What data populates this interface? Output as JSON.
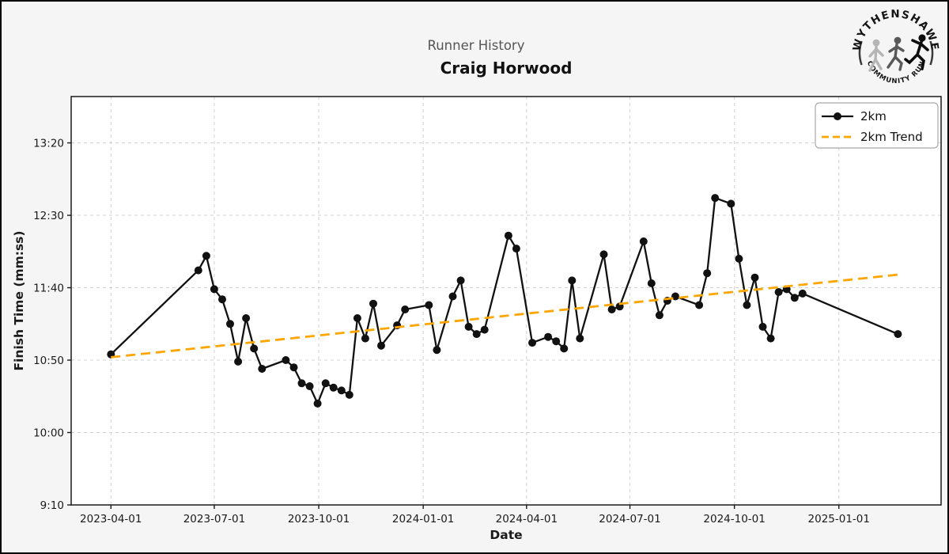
{
  "header": {
    "suptitle": "Runner History",
    "title": "Craig Horwood"
  },
  "logo": {
    "arc_top": "WYTHENSHAWE",
    "arc_bottom": "COMMUNITY RUN"
  },
  "colors": {
    "background": "#f5f5f5",
    "plot_background": "#ffffff",
    "grid": "#d0d0d0",
    "spine": "#1a1a1a",
    "line": "#111111",
    "trend": "#FFA500",
    "subtitle": "#555555"
  },
  "chart_data": {
    "type": "line",
    "title": "Runner History",
    "subtitle": "Craig Horwood",
    "xlabel": "Date",
    "ylabel": "Finish Time (mm:ss)",
    "grid": true,
    "legend_position": "upper right",
    "x_range": [
      "2023-02-25",
      "2025-04-01"
    ],
    "y_range_seconds": [
      550,
      832
    ],
    "x_ticks": [
      "2023-04-01",
      "2023-07-01",
      "2023-10-01",
      "2024-01-01",
      "2024-04-01",
      "2024-07-01",
      "2024-10-01",
      "2025-01-01"
    ],
    "y_ticks": [
      "13:20",
      "12:30",
      "11:40",
      "10:50",
      "10:00",
      "9:10"
    ],
    "series": [
      {
        "name": "2km",
        "color": "#111111",
        "style": "solid-markers",
        "points": [
          {
            "date": "2023-04-01",
            "time": "10:54"
          },
          {
            "date": "2023-06-17",
            "time": "11:52"
          },
          {
            "date": "2023-06-24",
            "time": "12:02"
          },
          {
            "date": "2023-07-01",
            "time": "11:39"
          },
          {
            "date": "2023-07-08",
            "time": "11:32"
          },
          {
            "date": "2023-07-15",
            "time": "11:15"
          },
          {
            "date": "2023-07-22",
            "time": "10:49"
          },
          {
            "date": "2023-07-29",
            "time": "11:19"
          },
          {
            "date": "2023-08-05",
            "time": "10:58"
          },
          {
            "date": "2023-08-12",
            "time": "10:44"
          },
          {
            "date": "2023-09-02",
            "time": "10:50"
          },
          {
            "date": "2023-09-09",
            "time": "10:45"
          },
          {
            "date": "2023-09-16",
            "time": "10:34"
          },
          {
            "date": "2023-09-23",
            "time": "10:32"
          },
          {
            "date": "2023-09-30",
            "time": "10:20"
          },
          {
            "date": "2023-10-07",
            "time": "10:34"
          },
          {
            "date": "2023-10-14",
            "time": "10:31"
          },
          {
            "date": "2023-10-21",
            "time": "10:29"
          },
          {
            "date": "2023-10-28",
            "time": "10:26"
          },
          {
            "date": "2023-11-04",
            "time": "11:19"
          },
          {
            "date": "2023-11-11",
            "time": "11:05"
          },
          {
            "date": "2023-11-18",
            "time": "11:29"
          },
          {
            "date": "2023-11-25",
            "time": "11:00"
          },
          {
            "date": "2023-12-09",
            "time": "11:14"
          },
          {
            "date": "2023-12-16",
            "time": "11:25"
          },
          {
            "date": "2024-01-06",
            "time": "11:28"
          },
          {
            "date": "2024-01-13",
            "time": "10:57"
          },
          {
            "date": "2024-01-27",
            "time": "11:34"
          },
          {
            "date": "2024-02-03",
            "time": "11:45"
          },
          {
            "date": "2024-02-10",
            "time": "11:13"
          },
          {
            "date": "2024-02-17",
            "time": "11:08"
          },
          {
            "date": "2024-02-24",
            "time": "11:11"
          },
          {
            "date": "2024-03-16",
            "time": "12:16"
          },
          {
            "date": "2024-03-23",
            "time": "12:07"
          },
          {
            "date": "2024-04-06",
            "time": "11:02"
          },
          {
            "date": "2024-04-20",
            "time": "11:06"
          },
          {
            "date": "2024-04-27",
            "time": "11:03"
          },
          {
            "date": "2024-05-04",
            "time": "10:58"
          },
          {
            "date": "2024-05-11",
            "time": "11:45"
          },
          {
            "date": "2024-05-18",
            "time": "11:05"
          },
          {
            "date": "2024-06-08",
            "time": "12:03"
          },
          {
            "date": "2024-06-15",
            "time": "11:25"
          },
          {
            "date": "2024-06-22",
            "time": "11:27"
          },
          {
            "date": "2024-07-13",
            "time": "12:12"
          },
          {
            "date": "2024-07-20",
            "time": "11:43"
          },
          {
            "date": "2024-07-27",
            "time": "11:21"
          },
          {
            "date": "2024-08-03",
            "time": "11:31"
          },
          {
            "date": "2024-08-10",
            "time": "11:34"
          },
          {
            "date": "2024-08-31",
            "time": "11:28"
          },
          {
            "date": "2024-09-07",
            "time": "11:50"
          },
          {
            "date": "2024-09-14",
            "time": "12:42"
          },
          {
            "date": "2024-09-28",
            "time": "12:38"
          },
          {
            "date": "2024-10-05",
            "time": "12:00"
          },
          {
            "date": "2024-10-12",
            "time": "11:28"
          },
          {
            "date": "2024-10-19",
            "time": "11:47"
          },
          {
            "date": "2024-10-26",
            "time": "11:13"
          },
          {
            "date": "2024-11-02",
            "time": "11:05"
          },
          {
            "date": "2024-11-09",
            "time": "11:37"
          },
          {
            "date": "2024-11-16",
            "time": "11:39"
          },
          {
            "date": "2024-11-23",
            "time": "11:33"
          },
          {
            "date": "2024-11-30",
            "time": "11:36"
          },
          {
            "date": "2025-02-22",
            "time": "11:08"
          }
        ]
      },
      {
        "name": "2km Trend",
        "color": "#FFA500",
        "style": "dashed",
        "points": [
          {
            "date": "2023-04-01",
            "time": "10:52"
          },
          {
            "date": "2025-02-22",
            "time": "11:49"
          }
        ]
      }
    ]
  }
}
